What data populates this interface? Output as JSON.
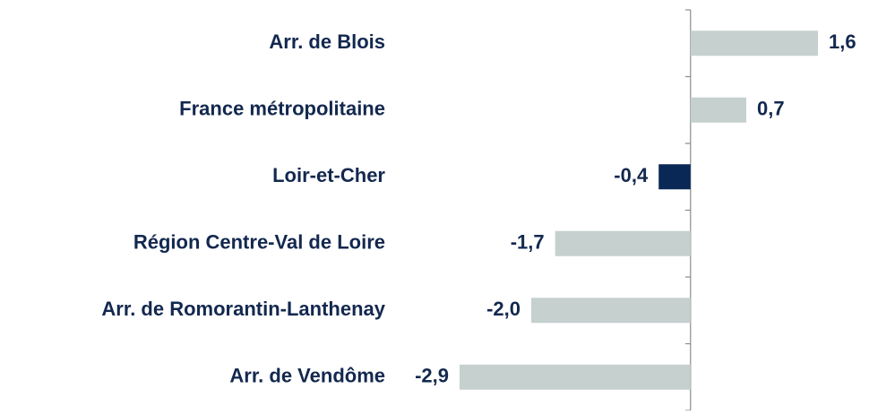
{
  "chart_data": {
    "type": "barh",
    "categories": [
      "Arr. de Blois",
      "France métropolitaine",
      "Loir-et-Cher",
      "Région Centre-Val de Loire",
      "Arr. de Romorantin-Lanthenay",
      "Arr. de Vendôme"
    ],
    "values": [
      1.6,
      0.7,
      -0.4,
      -1.7,
      -2.0,
      -2.9
    ],
    "value_labels": [
      "1,6",
      "0,7",
      "-0,4",
      "-1,7",
      "-2,0",
      "-2,9"
    ],
    "colors": [
      "#c5d0cf",
      "#c5d0cf",
      "#0a2856",
      "#c5d0cf",
      "#c5d0cf",
      "#c5d0cf"
    ]
  }
}
